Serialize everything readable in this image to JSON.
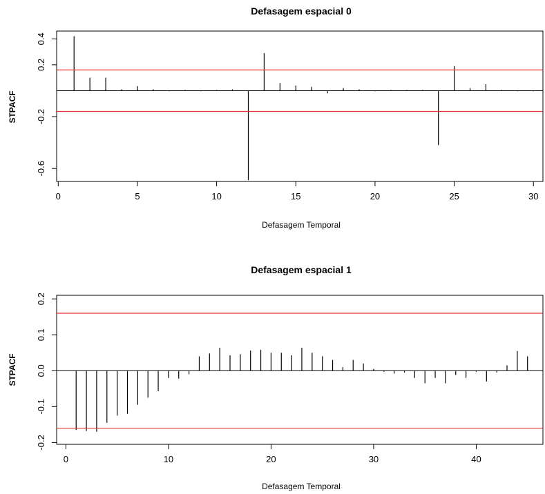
{
  "chart_data": [
    {
      "type": "bar",
      "title": "Defasagem espacial 0",
      "xlabel": "Defasagem Temporal",
      "ylabel": "STPACF",
      "xlim": [
        -0.1,
        30.6
      ],
      "ylim": [
        -0.7,
        0.46
      ],
      "xticks": [
        0,
        5,
        10,
        15,
        20,
        25,
        30
      ],
      "yticks": [
        0.4,
        0.2,
        -0.2,
        -0.6
      ],
      "ytick_labels": [
        "0.4",
        "0.2",
        "-0.2",
        "-0.6"
      ],
      "bounds": [
        0.16,
        -0.16
      ],
      "bound_color": "#e8312f",
      "bar_color": "#000000",
      "x": [
        1,
        2,
        3,
        4,
        5,
        6,
        7,
        8,
        9,
        10,
        11,
        12,
        13,
        14,
        15,
        16,
        17,
        18,
        19,
        20,
        21,
        22,
        23,
        24,
        25,
        26,
        27,
        28,
        29,
        30
      ],
      "values": [
        0.42,
        0.1,
        0.1,
        0.01,
        0.035,
        0.01,
        -0.005,
        0.005,
        -0.005,
        0.005,
        0.01,
        -0.69,
        0.29,
        0.06,
        0.04,
        0.03,
        -0.02,
        0.02,
        0.01,
        -0.005,
        0.005,
        0.005,
        0.005,
        -0.42,
        0.19,
        0.02,
        0.05,
        0.005,
        -0.005,
        -0.005
      ]
    },
    {
      "type": "bar",
      "title": "Defasagem espacial 1",
      "xlabel": "Defasagem Temporal",
      "ylabel": "STPACF",
      "xlim": [
        -0.9,
        46.5
      ],
      "ylim": [
        -0.205,
        0.21
      ],
      "xticks": [
        0,
        10,
        20,
        30,
        40
      ],
      "yticks": [
        0.2,
        0.1,
        0.0,
        -0.1,
        -0.2
      ],
      "ytick_labels": [
        "0.2",
        "0.1",
        "0.0",
        "-0.1",
        "-0.2"
      ],
      "bounds": [
        0.16,
        -0.16
      ],
      "bound_color": "#e8312f",
      "bar_color": "#000000",
      "x": [
        1,
        2,
        3,
        4,
        5,
        6,
        7,
        8,
        9,
        10,
        11,
        12,
        13,
        14,
        15,
        16,
        17,
        18,
        19,
        20,
        21,
        22,
        23,
        24,
        25,
        26,
        27,
        28,
        29,
        30,
        31,
        32,
        33,
        34,
        35,
        36,
        37,
        38,
        39,
        40,
        41,
        42,
        43,
        44,
        45
      ],
      "values": [
        -0.165,
        -0.168,
        -0.17,
        -0.145,
        -0.125,
        -0.12,
        -0.095,
        -0.075,
        -0.057,
        -0.02,
        -0.022,
        -0.01,
        0.04,
        0.048,
        0.064,
        0.043,
        0.046,
        0.056,
        0.058,
        0.05,
        0.05,
        0.043,
        0.064,
        0.05,
        0.04,
        0.03,
        0.01,
        0.03,
        0.02,
        0.005,
        -0.003,
        -0.008,
        -0.005,
        -0.02,
        -0.035,
        -0.02,
        -0.035,
        -0.012,
        -0.02,
        -0.003,
        -0.03,
        -0.005,
        0.015,
        0.055,
        0.04
      ]
    }
  ]
}
